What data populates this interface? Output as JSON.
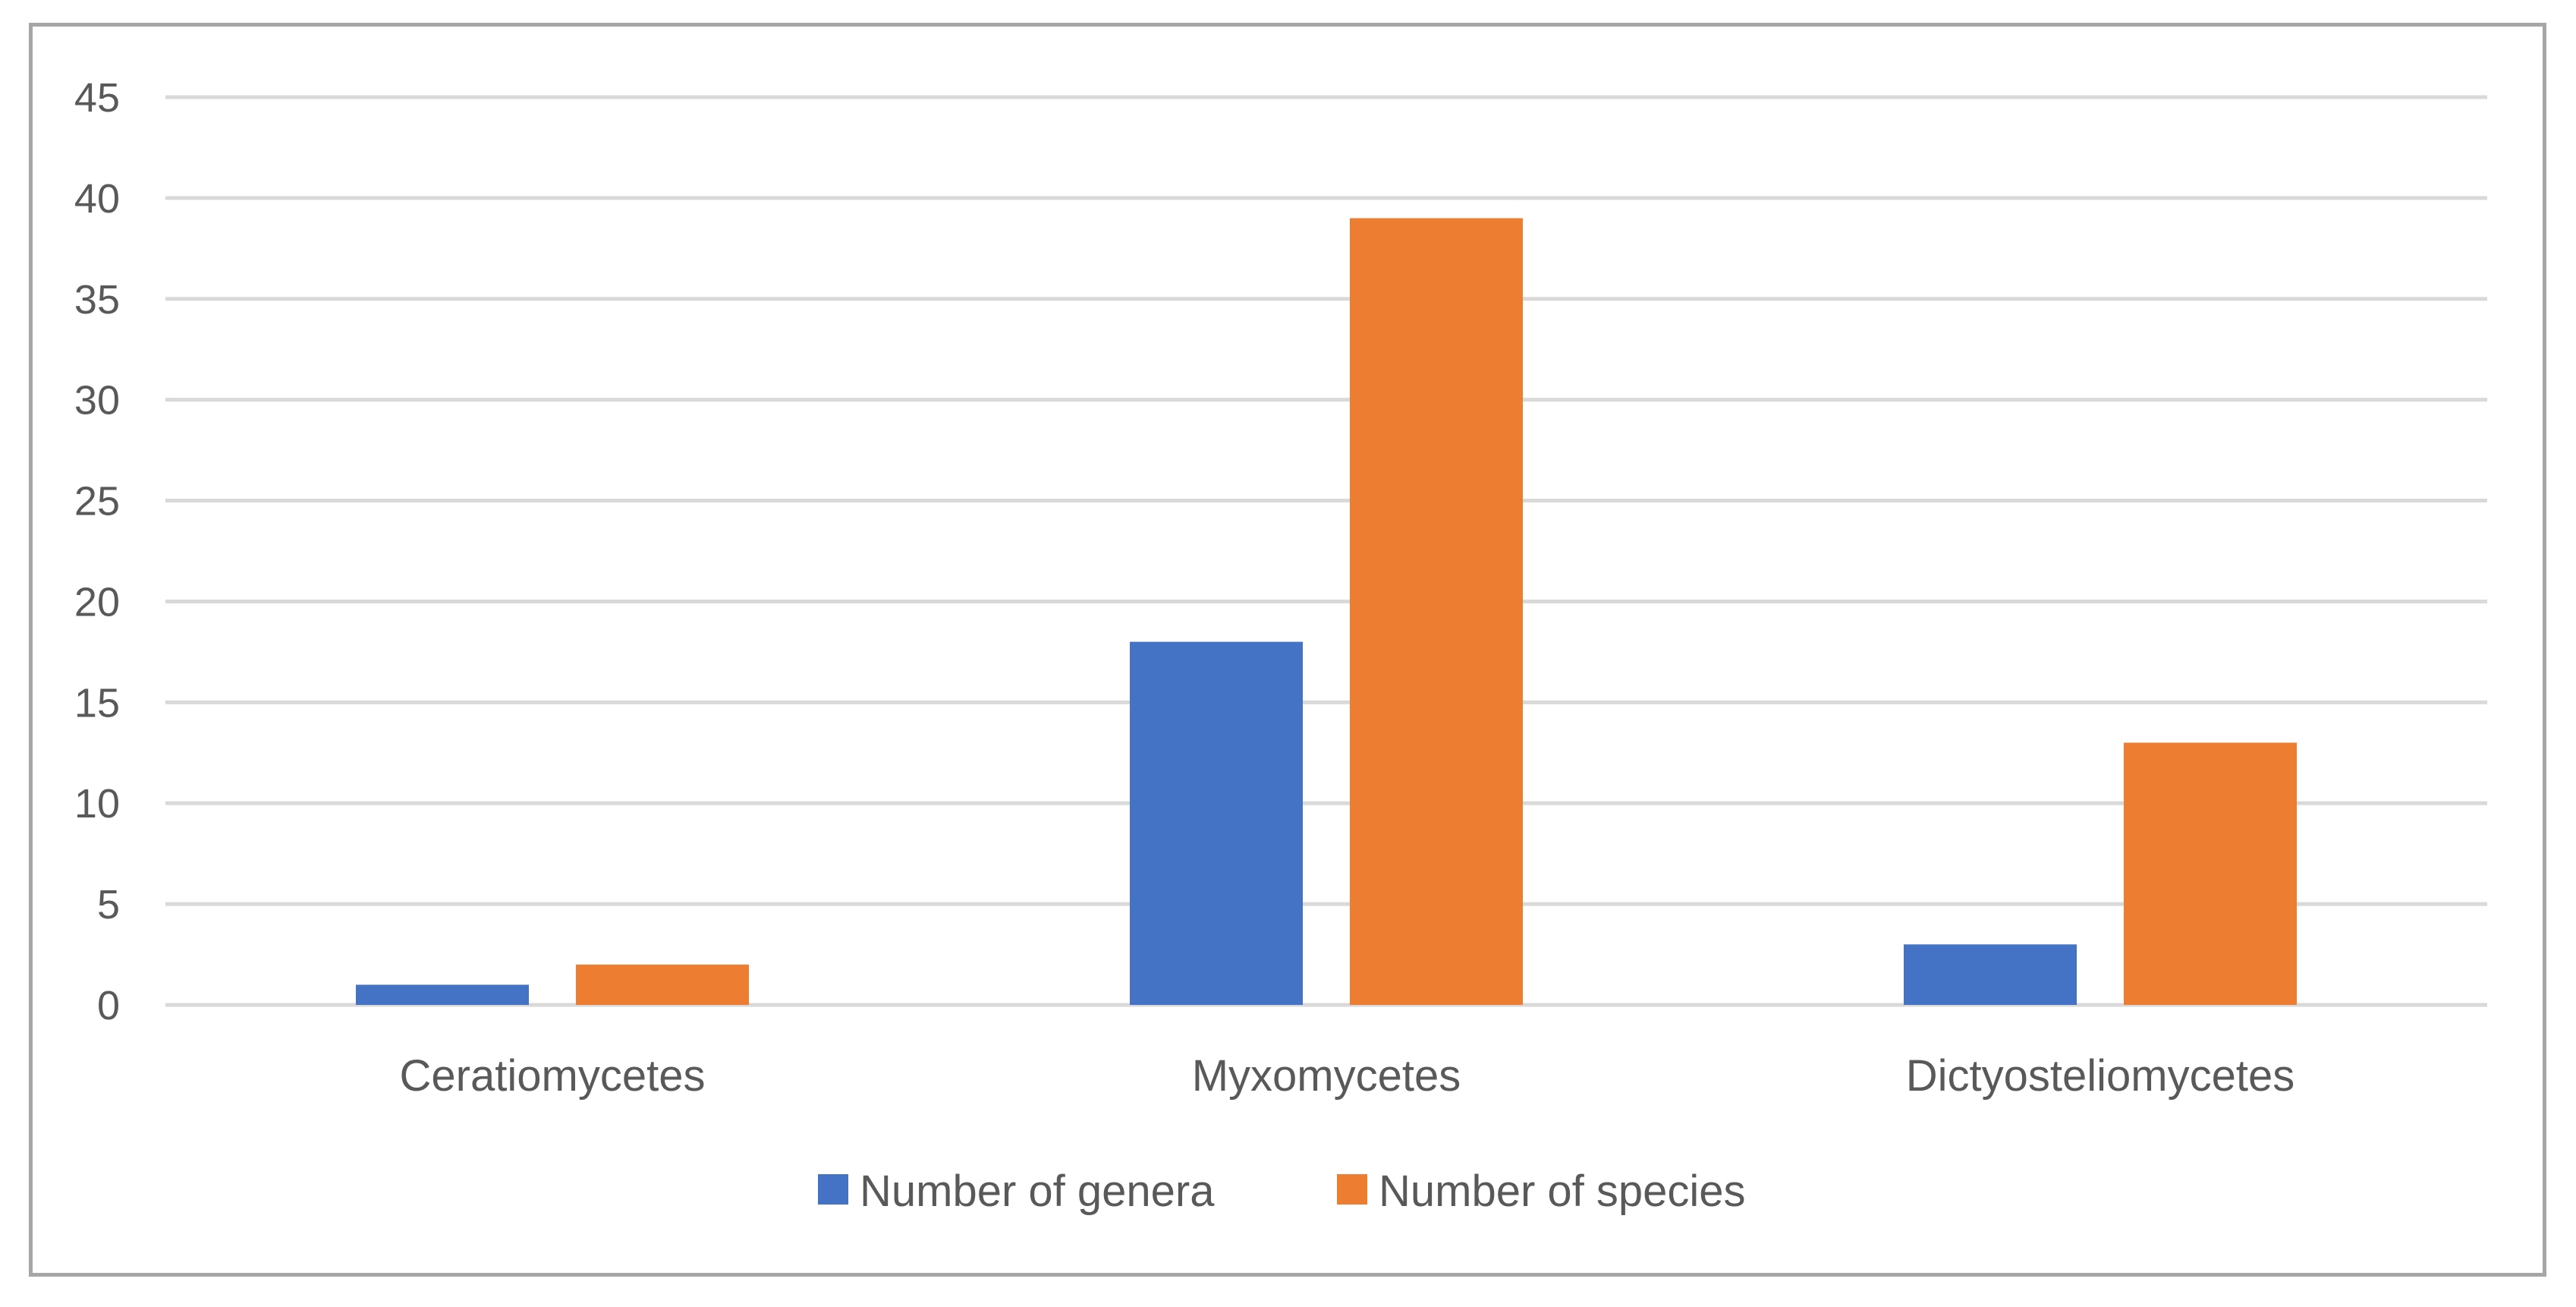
{
  "chart_data": {
    "type": "bar",
    "title": "",
    "xlabel": "",
    "ylabel": "",
    "categories": [
      "Ceratiomycetes",
      "Myxomycetes",
      "Dictyosteliomycetes"
    ],
    "series": [
      {
        "name": "Number of genera",
        "values": [
          1,
          18,
          3
        ],
        "color": "#4472c4"
      },
      {
        "name": "Number of species",
        "values": [
          2,
          39,
          13
        ],
        "color": "#ed7d31"
      }
    ],
    "ylim": [
      0,
      45
    ],
    "yticks": [
      0,
      5,
      10,
      15,
      20,
      25,
      30,
      35,
      40,
      45
    ],
    "grid": true,
    "legend_position": "bottom"
  },
  "colors": {
    "gridline": "#d9d9d9",
    "axis_text": "#595959",
    "frame": "#a6a6a6"
  }
}
